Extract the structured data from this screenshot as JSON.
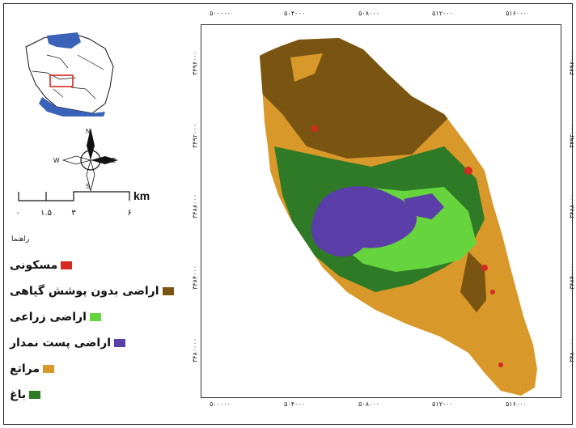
{
  "map": {
    "x_ticks": [
      "۵۰۰۰۰۰",
      "۵۰۴۰۰۰",
      "۵۰۸۰۰۰",
      "۵۱۲۰۰۰",
      "۵۱۶۰۰۰"
    ],
    "y_ticks": [
      "۳۴۹۶۰۰۰",
      "۳۴۹۲۰۰۰",
      "۳۴۸۸۰۰۰",
      "۳۴۸۴۰۰۰",
      "۳۴۸۰۰۰۰"
    ]
  },
  "compass": {
    "n": "N",
    "s": "S",
    "e": "E",
    "w": "W"
  },
  "scale_bar": {
    "labels": [
      "۰",
      "۱.۵",
      "۳",
      "۶"
    ],
    "unit": "km"
  },
  "legend": {
    "title": "راهنما",
    "items": [
      {
        "label": "مسکونی",
        "color": "#d42a1f"
      },
      {
        "label": "اراضی بدون پوشش گیاهی",
        "color": "#7a5512"
      },
      {
        "label": "اراضی زراعی",
        "color": "#66d43c"
      },
      {
        "label": "اراضی پست نمدار",
        "color": "#5a3fa8"
      },
      {
        "label": "مراتع",
        "color": "#d9982a"
      },
      {
        "label": "باغ",
        "color": "#2f7a26"
      }
    ]
  }
}
